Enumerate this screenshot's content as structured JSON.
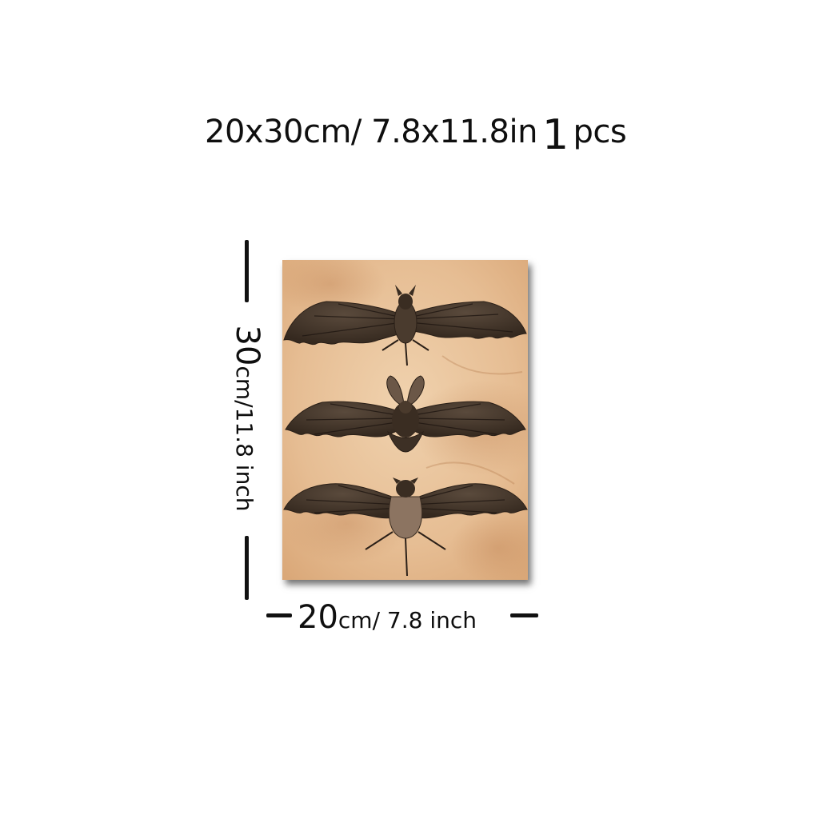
{
  "headline": {
    "size_text": "20x30cm/ 7.8x11.8in",
    "quantity_number": "1",
    "quantity_unit": "pcs"
  },
  "dimensions": {
    "height": {
      "value": "30",
      "unit_text": "cm/11.8 inch"
    },
    "width": {
      "value": "20",
      "unit_text": "cm/ 7.8 inch"
    }
  },
  "artwork": {
    "subject": "three-bats-vintage-illustration",
    "background_color": "#e8c39a",
    "stain_color": "#c48a5c",
    "bat_color": "#3f3328",
    "bat_belly_color": "#8c7461"
  }
}
